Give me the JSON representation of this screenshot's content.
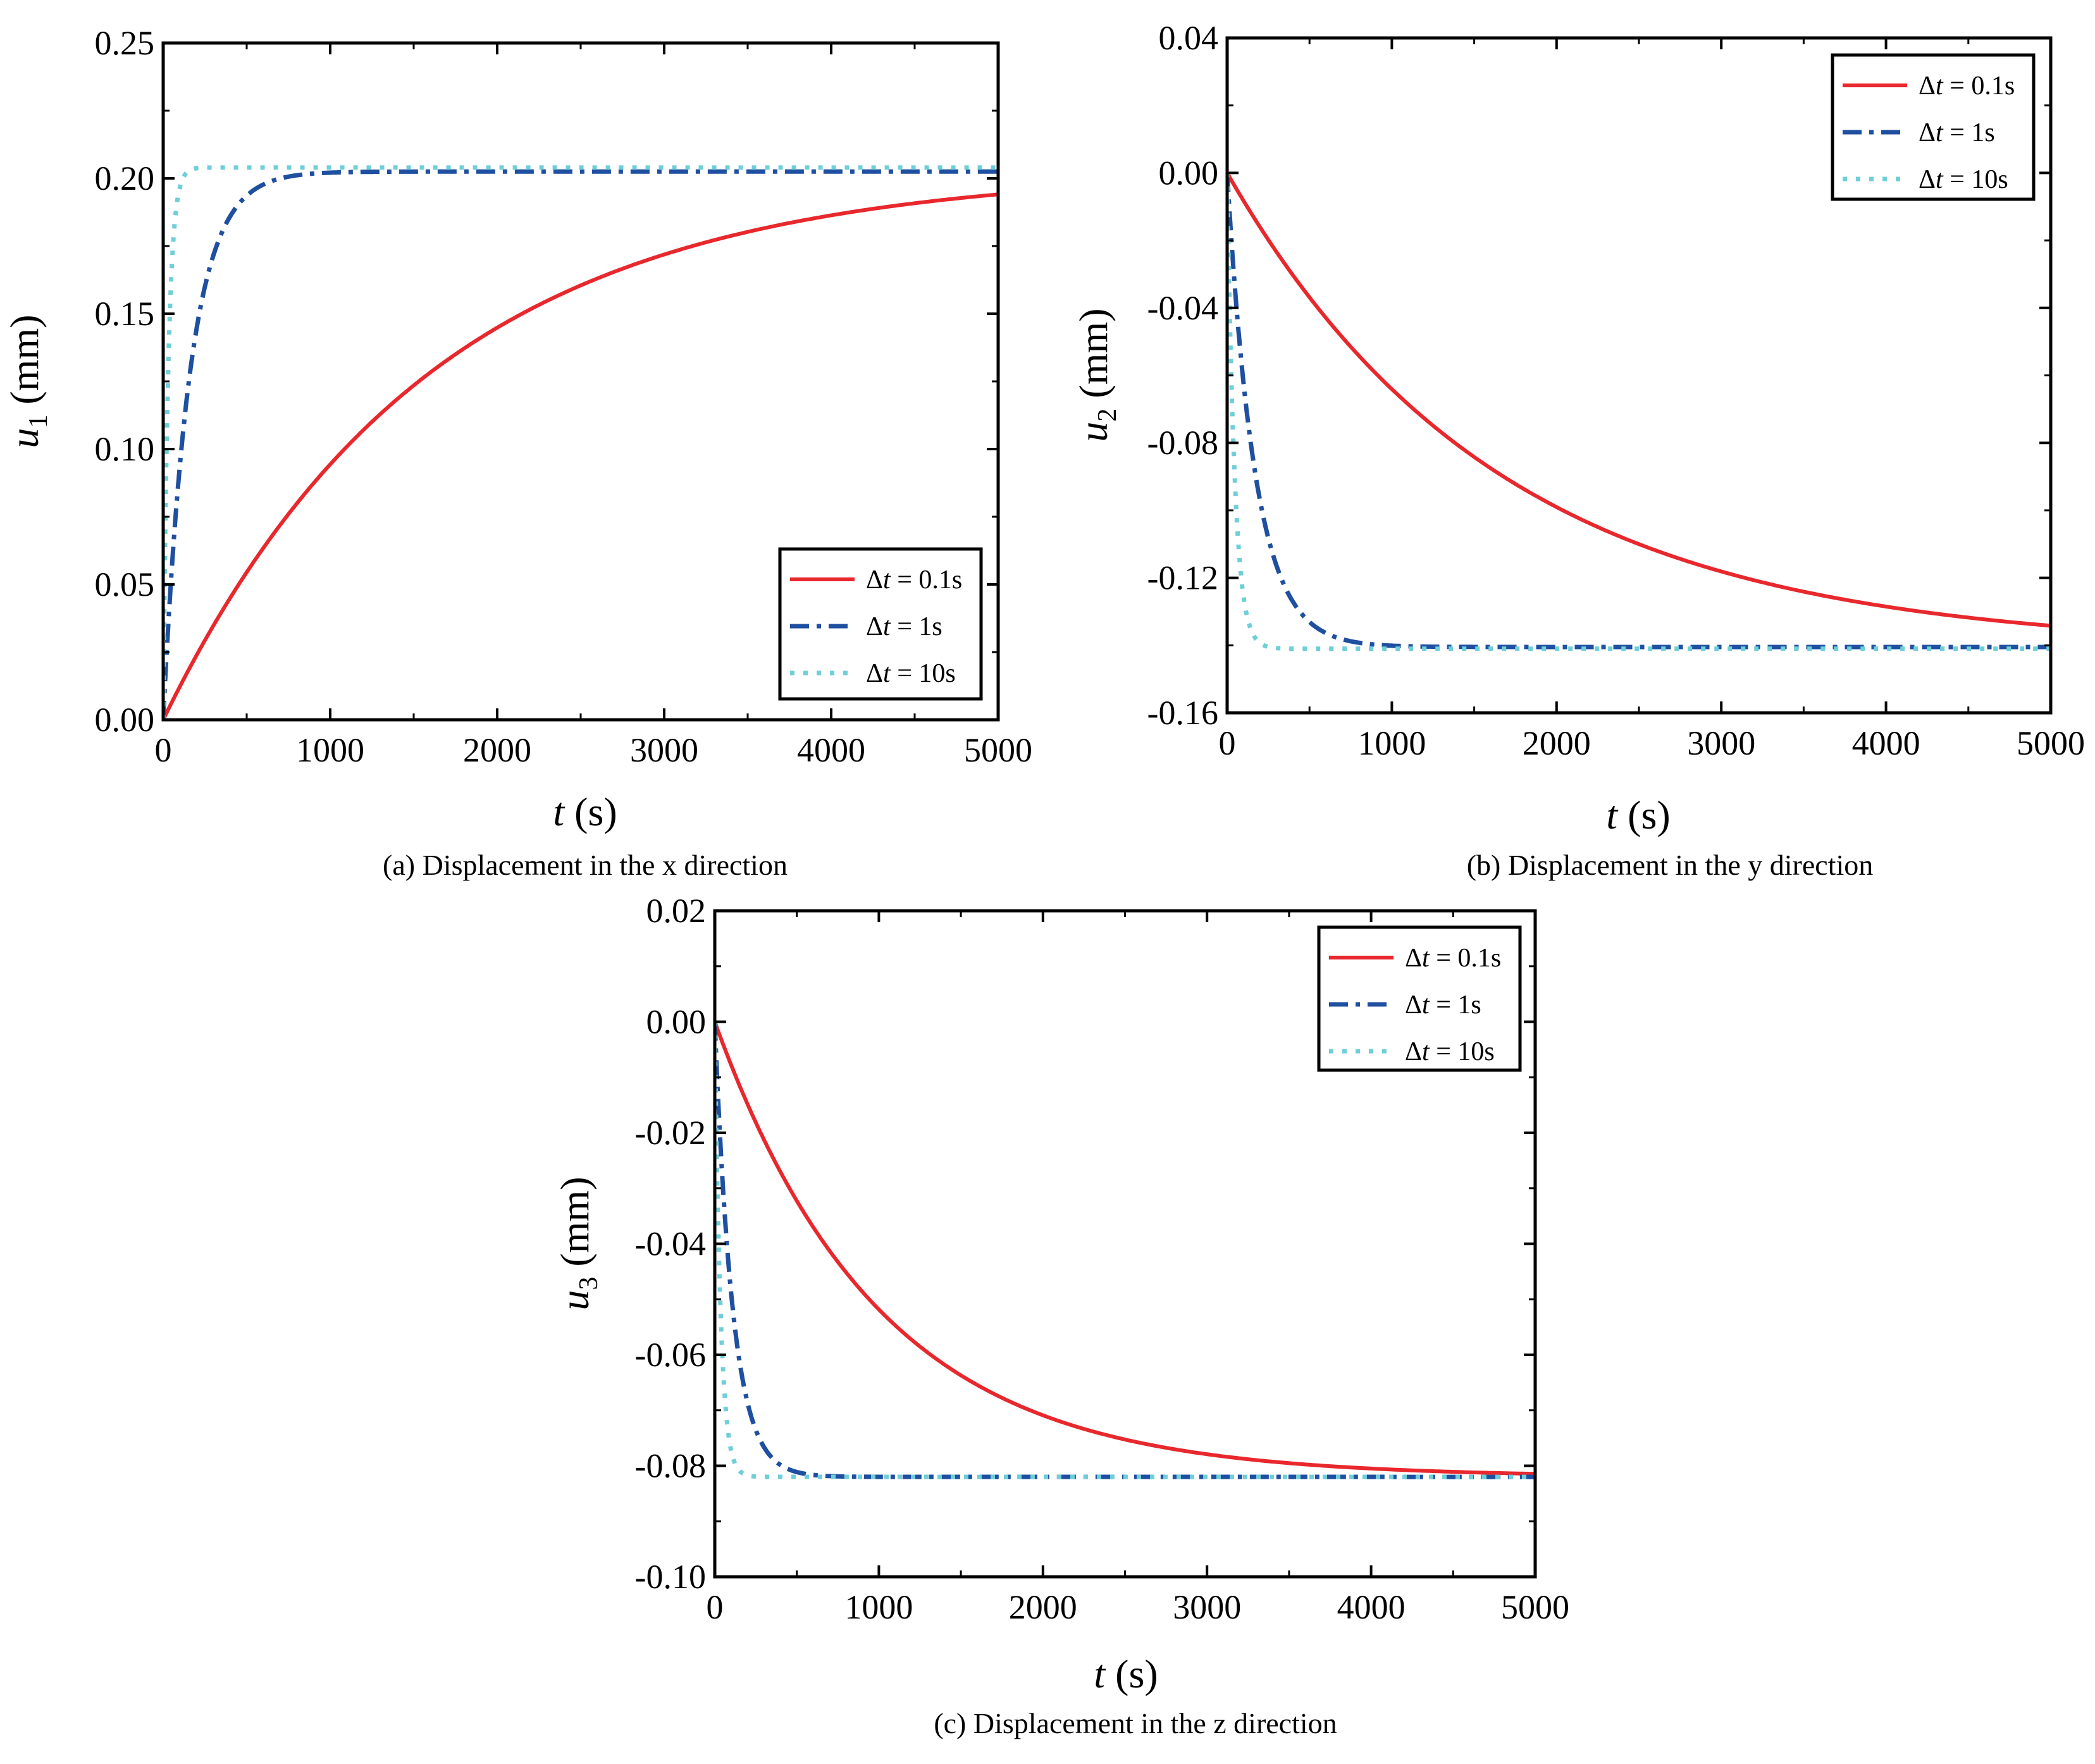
{
  "chart_data": [
    {
      "id": "a",
      "type": "line",
      "caption": "(a) Displacement in the x direction",
      "xlabel": {
        "var": "t",
        "unit": " (s)"
      },
      "ylabel": {
        "var": "u",
        "sub": "1",
        "unit": " (mm)"
      },
      "xlim": [
        0,
        5000
      ],
      "ylim": [
        0,
        0.25
      ],
      "xticks": [
        0,
        1000,
        2000,
        3000,
        4000,
        5000
      ],
      "yticks": [
        0,
        0.05,
        0.1,
        0.15,
        0.2,
        0.25
      ],
      "ytick_labels": [
        "0.00",
        "0.05",
        "0.10",
        "0.15",
        "0.20",
        "0.25"
      ],
      "legend_position": "bottom-right",
      "series": [
        {
          "name": "Δt = 0.1s",
          "label_var": "Δt",
          "label_value": " = 0.1s",
          "final": 0.203,
          "tau": 1600,
          "color": "#e8282d",
          "style": "solid"
        },
        {
          "name": "Δt = 1s",
          "label_var": "Δt",
          "label_value": " = 1s",
          "final": 0.2025,
          "tau": 160,
          "color": "#1f4fa0",
          "style": "dashdot"
        },
        {
          "name": "Δt = 10s",
          "label_var": "Δt",
          "label_value": " = 10s",
          "final": 0.204,
          "tau": 30,
          "color": "#6fcfd8",
          "style": "dot"
        }
      ]
    },
    {
      "id": "b",
      "type": "line",
      "caption": "(b) Displacement in the y direction",
      "xlabel": {
        "var": "t",
        "unit": " (s)"
      },
      "ylabel": {
        "var": "u",
        "sub": "2",
        "unit": " (mm)"
      },
      "xlim": [
        0,
        5000
      ],
      "ylim": [
        -0.16,
        0.04
      ],
      "xticks": [
        0,
        1000,
        2000,
        3000,
        4000,
        5000
      ],
      "yticks": [
        -0.16,
        -0.12,
        -0.08,
        -0.04,
        0.0,
        0.04
      ],
      "ytick_labels": [
        "-0.16",
        "-0.12",
        "-0.08",
        "-0.04",
        "0.00",
        "0.04"
      ],
      "legend_position": "top-right",
      "series": [
        {
          "name": "Δt = 0.1s",
          "label_var": "Δt",
          "label_value": " = 0.1s",
          "final": -0.141,
          "tau": 1650,
          "color": "#e8282d",
          "style": "solid"
        },
        {
          "name": "Δt = 1s",
          "label_var": "Δt",
          "label_value": " = 1s",
          "final": -0.1405,
          "tau": 170,
          "color": "#1f4fa0",
          "style": "dashdot"
        },
        {
          "name": "Δt = 10s",
          "label_var": "Δt",
          "label_value": " = 10s",
          "final": -0.141,
          "tau": 45,
          "color": "#6fcfd8",
          "style": "dot"
        }
      ]
    },
    {
      "id": "c",
      "type": "line",
      "caption": "(c) Displacement in the z direction",
      "xlabel": {
        "var": "t",
        "unit": " (s)"
      },
      "ylabel": {
        "var": "u",
        "sub": "3",
        "unit": " (mm)"
      },
      "xlim": [
        0,
        5000
      ],
      "ylim": [
        -0.1,
        0.02
      ],
      "xticks": [
        0,
        1000,
        2000,
        3000,
        4000,
        5000
      ],
      "yticks": [
        -0.1,
        -0.08,
        -0.06,
        -0.04,
        -0.02,
        0.0,
        0.02
      ],
      "ytick_labels": [
        "-0.10",
        "-0.08",
        "-0.06",
        "-0.04",
        "-0.02",
        "0.00",
        "0.02"
      ],
      "legend_position": "top-right",
      "series": [
        {
          "name": "Δt = 0.1s",
          "label_var": "Δt",
          "label_value": " = 0.1s",
          "final": -0.082,
          "tau": 1000,
          "color": "#e8282d",
          "style": "solid"
        },
        {
          "name": "Δt = 1s",
          "label_var": "Δt",
          "label_value": " = 1s",
          "final": -0.082,
          "tau": 110,
          "color": "#1f4fa0",
          "style": "dashdot"
        },
        {
          "name": "Δt = 10s",
          "label_var": "Δt",
          "label_value": " = 10s",
          "final": -0.082,
          "tau": 35,
          "color": "#6fcfd8",
          "style": "dot"
        }
      ]
    }
  ]
}
